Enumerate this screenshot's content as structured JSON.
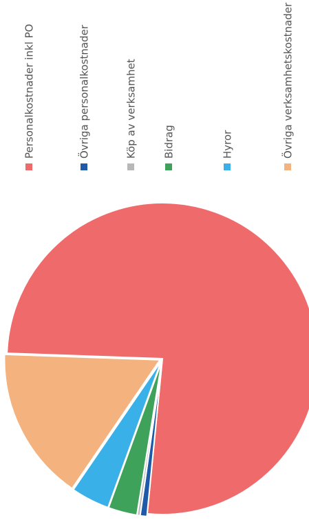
{
  "chart_data": {
    "type": "pie",
    "categories": [
      "Personalkostnader inkl PO",
      "Övriga personalkostnader",
      "Köp av verksamhet",
      "Bidrag",
      "Hyror",
      "Övriga verksamhetskostnader"
    ],
    "values": [
      76,
      0.7,
      0.3,
      3,
      4,
      16
    ],
    "colors": [
      "#ef6a6a",
      "#1f5aa8",
      "#b8b8b8",
      "#3fa25a",
      "#3ab0e8",
      "#f4b27e"
    ]
  }
}
